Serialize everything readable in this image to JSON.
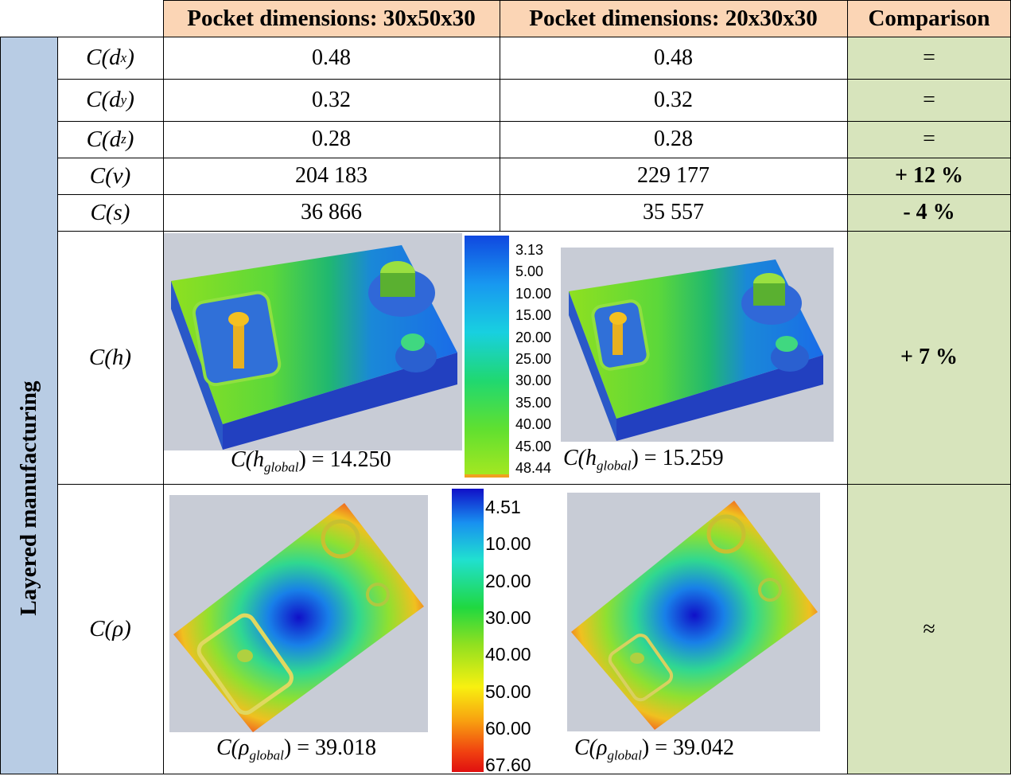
{
  "header": {
    "col_a": "Pocket dimensions: 30x50x30",
    "col_b": "Pocket dimensions: 20x30x30",
    "comparison": "Comparison"
  },
  "side_label": "Layered manufacturing",
  "rows": [
    {
      "metric": "C(d",
      "sub": "x",
      "close": ")",
      "a": "0.48",
      "b": "0.48",
      "comparison": "="
    },
    {
      "metric": "C(d",
      "sub": "y",
      "close": ")",
      "a": "0.32",
      "b": "0.32",
      "comparison": "="
    },
    {
      "metric": "C(d",
      "sub": "z",
      "close": ")",
      "a": "0.28",
      "b": "0.28",
      "comparison": "="
    },
    {
      "metric": "C(v)",
      "a": "204 183",
      "b": "229 177",
      "comparison": "+ 12 %"
    },
    {
      "metric": "C(s)",
      "a": "36 866",
      "b": "35 557",
      "comparison": "- 4 %"
    }
  ],
  "height_row": {
    "metric": "C(h)",
    "comparison": "+ 7 %",
    "global_a": {
      "prefix": "C(h",
      "sub": "global",
      "suffix": ") = ",
      "value": "14.250"
    },
    "global_b": {
      "prefix": "C(h",
      "sub": "global",
      "suffix": ") = ",
      "value": "15.259"
    },
    "legend": [
      "3.13",
      "5.00",
      "10.00",
      "15.00",
      "20.00",
      "25.00",
      "30.00",
      "35.00",
      "40.00",
      "45.00",
      "48.44"
    ]
  },
  "density_row": {
    "metric": "C(ρ)",
    "comparison": "≈",
    "global_a": {
      "prefix": "C(ρ",
      "sub": "global",
      "suffix": ") = ",
      "value": "39.018"
    },
    "global_b": {
      "prefix": "C(ρ",
      "sub": "global",
      "suffix": ") = ",
      "value": "39.042"
    },
    "legend": [
      "4.51",
      "10.00",
      "20.00",
      "30.00",
      "40.00",
      "50.00",
      "60.00",
      "67.60"
    ]
  },
  "colors": {
    "header_bg": "#fbd5b5",
    "comparison_bg": "#d7e4bc",
    "side_bg": "#b8cce4",
    "image_bg": "#c8ccd6"
  }
}
